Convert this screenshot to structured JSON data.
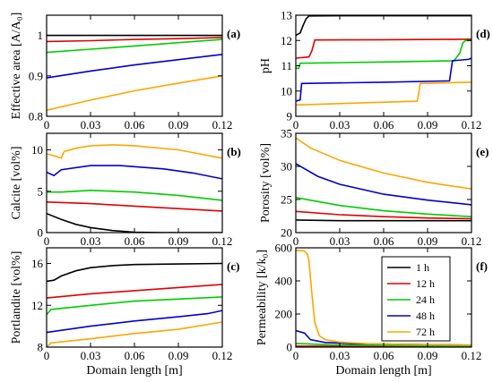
{
  "chart_data": [
    {
      "type": "line",
      "panel_label": "(a)",
      "ylabel": "Effective area [A/A₀]",
      "xlabel": "",
      "xlim": [
        0,
        0.12
      ],
      "ylim": [
        0.8,
        1.05
      ],
      "xticks": [
        "0",
        "0.03",
        "0.06",
        "0.09",
        "0.12"
      ],
      "yticks": [
        {
          "v": 0.8,
          "t": "0.8"
        },
        {
          "v": 0.9,
          "t": "0.9"
        },
        {
          "v": 1.0,
          "t": "1"
        }
      ],
      "series": [
        {
          "name": "1 h",
          "color": "#000000",
          "x": [
            0,
            0.12
          ],
          "y": [
            1.0,
            1.0
          ]
        },
        {
          "name": "12 h",
          "color": "#e00000",
          "x": [
            0,
            0.03,
            0.06,
            0.09,
            0.12
          ],
          "y": [
            0.985,
            0.987,
            0.99,
            0.992,
            0.995
          ]
        },
        {
          "name": "24 h",
          "color": "#00cc00",
          "x": [
            0,
            0.03,
            0.06,
            0.09,
            0.12
          ],
          "y": [
            0.958,
            0.966,
            0.974,
            0.982,
            0.99
          ]
        },
        {
          "name": "48 h",
          "color": "#0000cc",
          "x": [
            0,
            0.03,
            0.06,
            0.09,
            0.12
          ],
          "y": [
            0.895,
            0.912,
            0.927,
            0.94,
            0.953
          ]
        },
        {
          "name": "72 h",
          "color": "#ffa500",
          "x": [
            0,
            0.03,
            0.06,
            0.09,
            0.12
          ],
          "y": [
            0.815,
            0.84,
            0.863,
            0.882,
            0.9
          ]
        }
      ]
    },
    {
      "type": "line",
      "panel_label": "(b)",
      "ylabel": "Calcite [vol%]",
      "xlabel": "",
      "xlim": [
        0,
        0.12
      ],
      "ylim": [
        0,
        12
      ],
      "xticks": [
        "0",
        "0.03",
        "0.06",
        "0.09",
        "0.12"
      ],
      "yticks": [
        {
          "v": 0,
          "t": "0"
        },
        {
          "v": 5,
          "t": "5"
        },
        {
          "v": 10,
          "t": "10"
        }
      ],
      "series": [
        {
          "name": "1 h",
          "color": "#000000",
          "x": [
            0,
            0.01,
            0.02,
            0.03,
            0.045,
            0.06,
            0.08,
            0.12
          ],
          "y": [
            2.3,
            1.6,
            1.0,
            0.6,
            0.25,
            0.05,
            0,
            0
          ]
        },
        {
          "name": "12 h",
          "color": "#e00000",
          "x": [
            0,
            0.03,
            0.06,
            0.09,
            0.12
          ],
          "y": [
            3.7,
            3.5,
            3.2,
            2.9,
            2.6
          ]
        },
        {
          "name": "24 h",
          "color": "#00cc00",
          "x": [
            0,
            0.01,
            0.03,
            0.06,
            0.09,
            0.12
          ],
          "y": [
            4.9,
            4.9,
            5.1,
            4.9,
            4.5,
            3.9
          ]
        },
        {
          "name": "48 h",
          "color": "#0000cc",
          "x": [
            0,
            0.005,
            0.01,
            0.03,
            0.05,
            0.08,
            0.1,
            0.12
          ],
          "y": [
            7.3,
            6.9,
            7.6,
            8.1,
            8.1,
            7.7,
            7.2,
            6.5
          ]
        },
        {
          "name": "72 h",
          "color": "#ffa500",
          "x": [
            0,
            0.005,
            0.01,
            0.012,
            0.02,
            0.03,
            0.045,
            0.06,
            0.09,
            0.12
          ],
          "y": [
            9.5,
            9.3,
            9.0,
            9.8,
            10.2,
            10.5,
            10.6,
            10.5,
            10.0,
            9.0
          ]
        }
      ]
    },
    {
      "type": "line",
      "panel_label": "(c)",
      "ylabel": "Portlandite [vol%]",
      "xlabel": "Domain length [m]",
      "xlim": [
        0,
        0.12
      ],
      "ylim": [
        8,
        17.5
      ],
      "xticks": [
        "0",
        "0.03",
        "0.06",
        "0.09",
        "0.12"
      ],
      "yticks": [
        {
          "v": 8,
          "t": "8"
        },
        {
          "v": 12,
          "t": "12"
        },
        {
          "v": 16,
          "t": "16"
        }
      ],
      "series": [
        {
          "name": "1 h",
          "color": "#000000",
          "x": [
            0,
            0.005,
            0.01,
            0.02,
            0.03,
            0.045,
            0.06,
            0.09,
            0.12
          ],
          "y": [
            14.3,
            14.4,
            14.8,
            15.3,
            15.6,
            15.8,
            15.9,
            15.95,
            16.0
          ]
        },
        {
          "name": "12 h",
          "color": "#e00000",
          "x": [
            0,
            0.03,
            0.06,
            0.09,
            0.12
          ],
          "y": [
            12.7,
            13.1,
            13.4,
            13.7,
            14.0
          ]
        },
        {
          "name": "24 h",
          "color": "#00cc00",
          "x": [
            0,
            0.003,
            0.03,
            0.06,
            0.09,
            0.12
          ],
          "y": [
            11.1,
            11.6,
            12.0,
            12.4,
            12.6,
            12.8
          ]
        },
        {
          "name": "48 h",
          "color": "#0000cc",
          "x": [
            0,
            0.03,
            0.06,
            0.09,
            0.11,
            0.12
          ],
          "y": [
            9.4,
            10.0,
            10.5,
            10.9,
            11.2,
            11.5
          ]
        },
        {
          "name": "72 h",
          "color": "#ffa500",
          "x": [
            0,
            0.003,
            0.03,
            0.06,
            0.09,
            0.12
          ],
          "y": [
            8.0,
            8.4,
            8.8,
            9.3,
            9.7,
            10.4
          ]
        }
      ]
    },
    {
      "type": "line",
      "panel_label": "(d)",
      "ylabel": "pH",
      "xlabel": "",
      "xlim": [
        0,
        0.12
      ],
      "ylim": [
        9,
        13
      ],
      "xticks": [
        "0",
        "0.03",
        "0.06",
        "0.09",
        "0.12"
      ],
      "yticks": [
        {
          "v": 9,
          "t": "9"
        },
        {
          "v": 10,
          "t": "10"
        },
        {
          "v": 11,
          "t": "11"
        },
        {
          "v": 12,
          "t": "12"
        },
        {
          "v": 13,
          "t": "13"
        }
      ],
      "series": [
        {
          "name": "1 h",
          "color": "#000000",
          "x": [
            0,
            0.003,
            0.005,
            0.007,
            0.009,
            0.03,
            0.12
          ],
          "y": [
            12.2,
            12.3,
            12.6,
            12.85,
            12.97,
            12.98,
            12.98
          ]
        },
        {
          "name": "12 h",
          "color": "#e00000",
          "x": [
            0,
            0.009,
            0.011,
            0.013,
            0.06,
            0.12
          ],
          "y": [
            11.3,
            11.35,
            11.6,
            12.02,
            12.03,
            12.05
          ]
        },
        {
          "name": "24 h",
          "color": "#00cc00",
          "x": [
            0,
            0.002,
            0.003,
            0.06,
            0.108,
            0.112,
            0.114,
            0.116,
            0.12
          ],
          "y": [
            10.9,
            10.9,
            11.1,
            11.15,
            11.2,
            11.5,
            11.9,
            12.0,
            12.0
          ]
        },
        {
          "name": "48 h",
          "color": "#0000cc",
          "x": [
            0,
            0.003,
            0.004,
            0.06,
            0.105,
            0.107,
            0.118,
            0.12
          ],
          "y": [
            9.6,
            9.65,
            10.3,
            10.35,
            10.4,
            11.2,
            11.25,
            11.3
          ]
        },
        {
          "name": "72 h",
          "color": "#ffa500",
          "x": [
            0,
            0.083,
            0.085,
            0.12
          ],
          "y": [
            9.45,
            9.6,
            10.3,
            10.35
          ]
        }
      ]
    },
    {
      "type": "line",
      "panel_label": "(e)",
      "ylabel": "Porosity [vol%]",
      "xlabel": "",
      "xlim": [
        0,
        0.12
      ],
      "ylim": [
        20,
        35
      ],
      "xticks": [
        "0",
        "0.03",
        "0.06",
        "0.09",
        "0.12"
      ],
      "yticks": [
        {
          "v": 20,
          "t": "20"
        },
        {
          "v": 25,
          "t": "25"
        },
        {
          "v": 30,
          "t": "30"
        },
        {
          "v": 35,
          "t": "35"
        }
      ],
      "series": [
        {
          "name": "1 h",
          "color": "#000000",
          "x": [
            0,
            0.03,
            0.06,
            0.09,
            0.12
          ],
          "y": [
            21.9,
            21.8,
            21.8,
            21.8,
            21.8
          ]
        },
        {
          "name": "12 h",
          "color": "#e00000",
          "x": [
            0,
            0.03,
            0.06,
            0.09,
            0.12
          ],
          "y": [
            23.2,
            22.7,
            22.4,
            22.2,
            22.1
          ]
        },
        {
          "name": "24 h",
          "color": "#00cc00",
          "x": [
            0,
            0.03,
            0.06,
            0.09,
            0.12
          ],
          "y": [
            25.3,
            24.1,
            23.3,
            22.8,
            22.4
          ]
        },
        {
          "name": "48 h",
          "color": "#0000cc",
          "x": [
            0,
            0.015,
            0.03,
            0.06,
            0.09,
            0.12
          ],
          "y": [
            30.4,
            28.5,
            27.3,
            25.8,
            24.9,
            24.2
          ]
        },
        {
          "name": "72 h",
          "color": "#ffa500",
          "x": [
            0,
            0.01,
            0.03,
            0.06,
            0.09,
            0.12
          ],
          "y": [
            34.3,
            32.8,
            30.9,
            29.0,
            27.6,
            26.6
          ]
        }
      ]
    },
    {
      "type": "line",
      "panel_label": "(f)",
      "ylabel": "Permeability [k/k₀]",
      "xlabel": "Domain length [m]",
      "xlim": [
        0,
        0.12
      ],
      "ylim": [
        0,
        600
      ],
      "xticks": [
        "0",
        "0.03",
        "0.06",
        "0.09",
        "0.12"
      ],
      "yticks": [
        {
          "v": 0,
          "t": "0"
        },
        {
          "v": 200,
          "t": "200"
        },
        {
          "v": 400,
          "t": "400"
        },
        {
          "v": 600,
          "t": "600"
        }
      ],
      "legend": {
        "placement": "upper-right",
        "entries": [
          "1 h",
          "12 h",
          "24 h",
          "48 h",
          "72 h"
        ]
      },
      "series": [
        {
          "name": "1 h",
          "color": "#000000",
          "x": [
            0,
            0.12
          ],
          "y": [
            1,
            1
          ]
        },
        {
          "name": "12 h",
          "color": "#e00000",
          "x": [
            0,
            0.12
          ],
          "y": [
            6,
            2
          ]
        },
        {
          "name": "24 h",
          "color": "#00cc00",
          "x": [
            0,
            0.03,
            0.12
          ],
          "y": [
            22,
            12,
            6
          ]
        },
        {
          "name": "48 h",
          "color": "#0000cc",
          "x": [
            0,
            0.006,
            0.01,
            0.02,
            0.04,
            0.12
          ],
          "y": [
            100,
            85,
            45,
            28,
            20,
            12
          ]
        },
        {
          "name": "72 h",
          "color": "#ffa500",
          "x": [
            0,
            0.006,
            0.008,
            0.009,
            0.011,
            0.013,
            0.016,
            0.02,
            0.03,
            0.05,
            0.08,
            0.12
          ],
          "y": [
            585,
            580,
            560,
            520,
            320,
            150,
            70,
            45,
            30,
            20,
            15,
            12
          ]
        }
      ]
    }
  ]
}
